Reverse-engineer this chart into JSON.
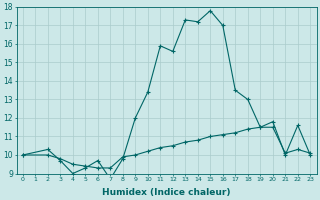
{
  "xlabel": "Humidex (Indice chaleur)",
  "xlim": [
    -0.5,
    23.5
  ],
  "ylim": [
    9,
    18
  ],
  "yticks": [
    9,
    10,
    11,
    12,
    13,
    14,
    15,
    16,
    17,
    18
  ],
  "xticks": [
    0,
    1,
    2,
    3,
    4,
    5,
    6,
    7,
    8,
    9,
    10,
    11,
    12,
    13,
    14,
    15,
    16,
    17,
    18,
    19,
    20,
    21,
    22,
    23
  ],
  "bg_color": "#cce8e8",
  "grid_color": "#aacccc",
  "line_color": "#006666",
  "curve1_x": [
    0,
    2,
    3,
    4,
    5,
    6,
    7,
    8,
    9,
    10,
    11,
    12,
    13,
    14,
    15,
    16,
    17,
    18,
    19,
    20,
    21,
    22,
    23
  ],
  "curve1_y": [
    10.0,
    10.3,
    9.7,
    9.0,
    9.3,
    9.7,
    8.7,
    9.8,
    12.0,
    13.4,
    15.9,
    15.6,
    17.3,
    17.2,
    17.8,
    17.0,
    13.5,
    13.0,
    11.5,
    11.8,
    10.0,
    11.6,
    10.0
  ],
  "curve2_x": [
    0,
    2,
    3,
    4,
    5,
    6,
    7,
    8,
    9,
    10,
    11,
    12,
    13,
    14,
    15,
    16,
    17,
    18,
    19,
    20,
    21,
    22,
    23
  ],
  "curve2_y": [
    10.0,
    10.0,
    9.8,
    9.5,
    9.4,
    9.3,
    9.3,
    9.9,
    10.0,
    10.2,
    10.4,
    10.5,
    10.7,
    10.8,
    11.0,
    11.1,
    11.2,
    11.4,
    11.5,
    11.5,
    10.1,
    10.3,
    10.1
  ]
}
